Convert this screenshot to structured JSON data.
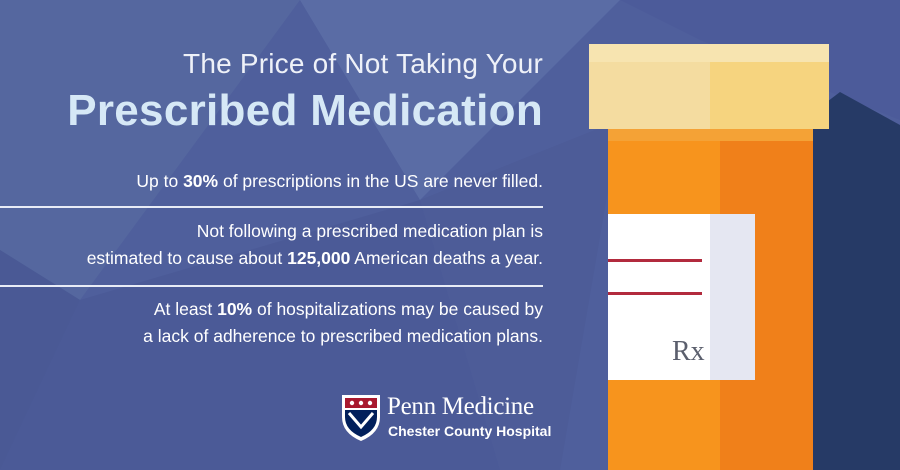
{
  "title": {
    "line1": "The Price of Not Taking Your",
    "line2": "Prescribed Medication"
  },
  "stats": [
    {
      "prefix": "Up to ",
      "highlight": "30%",
      "suffix": " of prescriptions in the US are never filled."
    },
    {
      "line1": "Not following a prescribed medication plan is",
      "line2_prefix": "estimated to cause about ",
      "highlight": "125,000",
      "line2_suffix": " American deaths a year."
    },
    {
      "line1_prefix": "At least ",
      "highlight": "10%",
      "line1_suffix": " of hospitalizations may be caused by",
      "line2": "a lack of adherence to prescribed medication plans."
    }
  ],
  "bottle": {
    "label_text": "Rx"
  },
  "logo": {
    "name": "Penn Medicine",
    "subtitle": "Chester County Hospital"
  },
  "colors": {
    "background": "#4f5f9c",
    "bottle_orange": "#f7941d",
    "bottle_orange_dark": "#e9741a",
    "cap": "#f4dca0",
    "label": "#ffffff",
    "shadow": "#263a66"
  }
}
